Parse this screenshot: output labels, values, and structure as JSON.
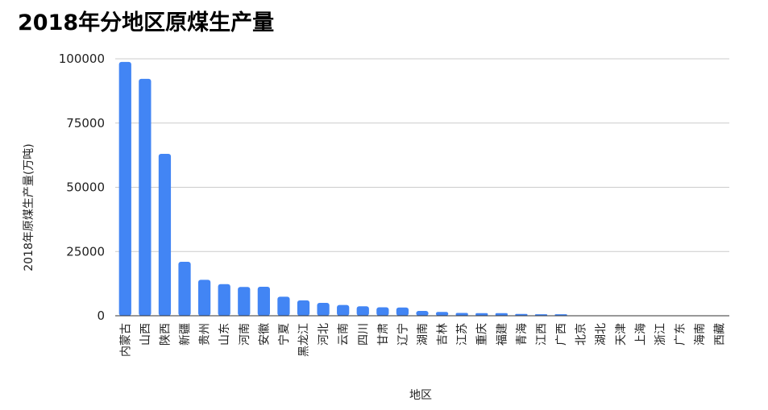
{
  "chart_data": {
    "type": "bar",
    "title": "2018年分地区原煤生产量",
    "xlabel": "地区",
    "ylabel": "2018年原煤生产量(万吨)",
    "ylim": [
      0,
      100000
    ],
    "yticks": [
      "0",
      "25000",
      "50000",
      "75000",
      "100000"
    ],
    "grid": true,
    "color": "#4285f4",
    "categories": [
      "内蒙古",
      "山西",
      "陕西",
      "新疆",
      "贵州",
      "山东",
      "河南",
      "安徽",
      "宁夏",
      "黑龙江",
      "河北",
      "云南",
      "四川",
      "甘肃",
      "辽宁",
      "湖南",
      "吉林",
      "江苏",
      "重庆",
      "福建",
      "青海",
      "江西",
      "广西",
      "北京",
      "湖北",
      "天津",
      "上海",
      "浙江",
      "广东",
      "海南",
      "西藏"
    ],
    "values": [
      98800,
      92200,
      63000,
      21000,
      14000,
      12300,
      11200,
      11300,
      7400,
      6000,
      5000,
      4200,
      3700,
      3300,
      3200,
      1900,
      1500,
      1100,
      1000,
      1000,
      700,
      600,
      600,
      0,
      0,
      0,
      0,
      0,
      0,
      0,
      0
    ]
  }
}
